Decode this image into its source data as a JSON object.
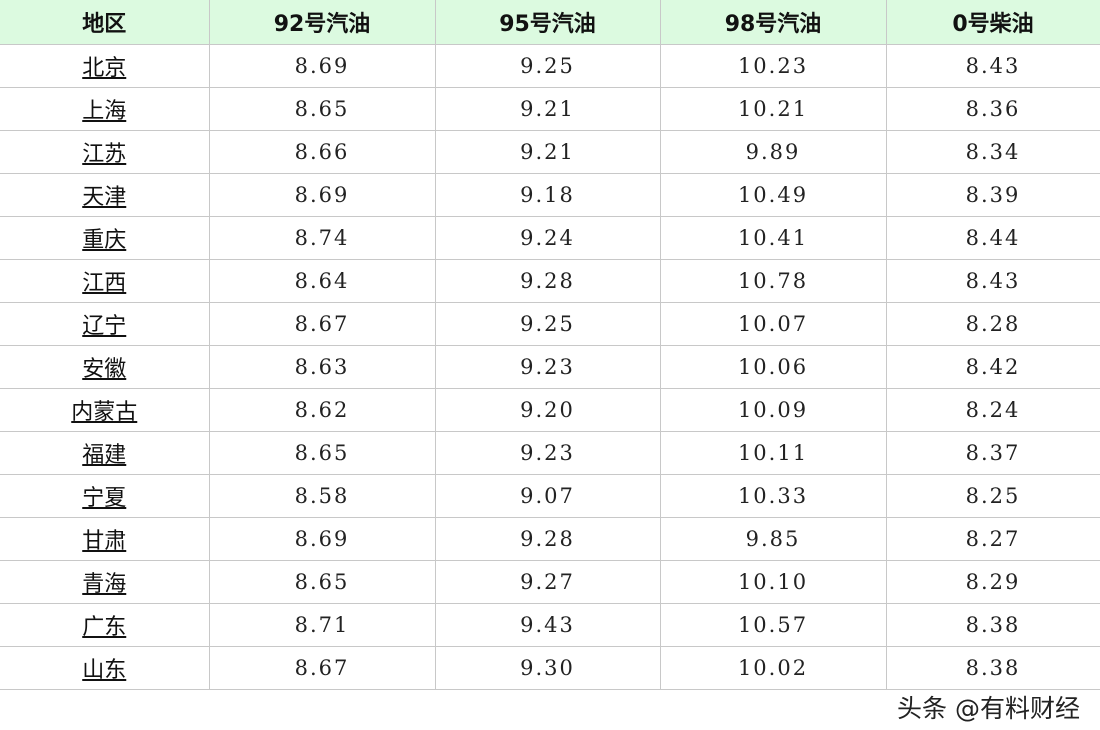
{
  "table": {
    "headers": [
      "地区",
      "92号汽油",
      "95号汽油",
      "98号汽油",
      "0号柴油"
    ],
    "rows": [
      [
        "北京",
        "8.69",
        "9.25",
        "10.23",
        "8.43"
      ],
      [
        "上海",
        "8.65",
        "9.21",
        "10.21",
        "8.36"
      ],
      [
        "江苏",
        "8.66",
        "9.21",
        "9.89",
        "8.34"
      ],
      [
        "天津",
        "8.69",
        "9.18",
        "10.49",
        "8.39"
      ],
      [
        "重庆",
        "8.74",
        "9.24",
        "10.41",
        "8.44"
      ],
      [
        "江西",
        "8.64",
        "9.28",
        "10.78",
        "8.43"
      ],
      [
        "辽宁",
        "8.67",
        "9.25",
        "10.07",
        "8.28"
      ],
      [
        "安徽",
        "8.63",
        "9.23",
        "10.06",
        "8.42"
      ],
      [
        "内蒙古",
        "8.62",
        "9.20",
        "10.09",
        "8.24"
      ],
      [
        "福建",
        "8.65",
        "9.23",
        "10.11",
        "8.37"
      ],
      [
        "宁夏",
        "8.58",
        "9.07",
        "10.33",
        "8.25"
      ],
      [
        "甘肃",
        "8.69",
        "9.28",
        "9.85",
        "8.27"
      ],
      [
        "青海",
        "8.65",
        "9.27",
        "10.10",
        "8.29"
      ],
      [
        "广东",
        "8.71",
        "9.43",
        "10.57",
        "8.38"
      ],
      [
        "山东",
        "8.67",
        "9.30",
        "10.02",
        "8.38"
      ]
    ]
  },
  "watermark": "头条 @有料财经",
  "colors": {
    "header_bg": "#dcfae0",
    "grid": "#c8c8c8"
  }
}
